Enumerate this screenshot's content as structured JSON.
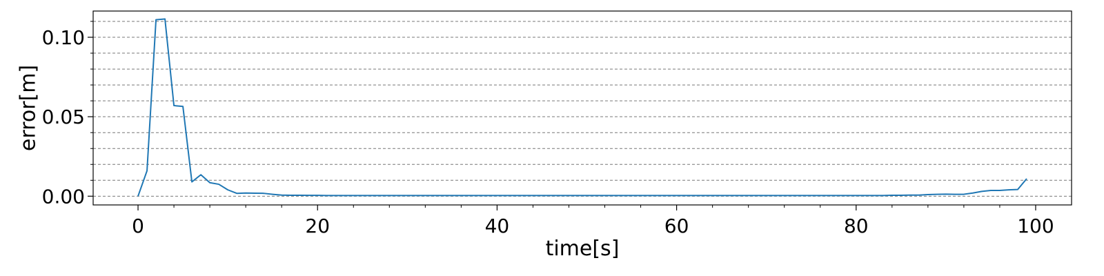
{
  "chart_data": {
    "type": "line",
    "title": "",
    "xlabel": "time[s]",
    "ylabel": "error[m]",
    "xlim": [
      -5,
      104
    ],
    "ylim": [
      -0.0055,
      0.1165
    ],
    "xticks": [
      0,
      20,
      40,
      60,
      80,
      100
    ],
    "xtick_labels": [
      "0",
      "20",
      "40",
      "60",
      "80",
      "100"
    ],
    "yticks": [
      0.0,
      0.05,
      0.1
    ],
    "ytick_labels": [
      "0.00",
      "0.05",
      "0.10"
    ],
    "grid": true,
    "grid_axis": "y",
    "grid_step": 0.01,
    "minor_xticks": [
      4,
      8,
      12,
      16,
      24,
      28,
      32,
      36,
      44,
      48,
      52,
      56,
      64,
      68,
      72,
      76,
      84,
      88,
      92,
      96
    ],
    "minor_yticks": [
      0.01,
      0.02,
      0.03,
      0.04,
      0.06,
      0.07,
      0.08,
      0.09,
      0.11
    ],
    "legend": "none",
    "series": [
      {
        "color": "#1f77b4",
        "x": [
          0,
          1,
          2,
          3,
          4,
          5,
          6,
          7,
          8,
          9,
          10,
          11,
          12,
          13,
          14,
          15,
          16,
          17,
          18,
          19,
          20,
          21,
          22,
          23,
          24,
          25,
          26,
          27,
          28,
          29,
          30,
          31,
          32,
          33,
          34,
          35,
          36,
          37,
          38,
          39,
          40,
          41,
          42,
          43,
          44,
          45,
          46,
          47,
          48,
          49,
          50,
          51,
          52,
          53,
          54,
          55,
          56,
          57,
          58,
          59,
          60,
          61,
          62,
          63,
          64,
          65,
          66,
          67,
          68,
          69,
          70,
          71,
          72,
          73,
          74,
          75,
          76,
          77,
          78,
          79,
          80,
          81,
          82,
          83,
          84,
          85,
          86,
          87,
          88,
          89,
          90,
          91,
          92,
          93,
          94,
          95,
          96,
          97,
          98,
          99
        ],
        "y": [
          0.0,
          0.016,
          0.111,
          0.1115,
          0.057,
          0.0565,
          0.009,
          0.0135,
          0.0085,
          0.0075,
          0.004,
          0.0018,
          0.002,
          0.0019,
          0.0018,
          0.0012,
          0.0007,
          0.0006,
          0.0006,
          0.0005,
          0.0005,
          0.0004,
          0.0004,
          0.0004,
          0.0004,
          0.0004,
          0.0004,
          0.0004,
          0.0004,
          0.0004,
          0.0004,
          0.0004,
          0.0004,
          0.0004,
          0.0004,
          0.0004,
          0.0004,
          0.0004,
          0.0004,
          0.0004,
          0.0004,
          0.0004,
          0.0004,
          0.0004,
          0.0004,
          0.0004,
          0.0004,
          0.0004,
          0.0004,
          0.0004,
          0.0004,
          0.0004,
          0.0004,
          0.0004,
          0.0004,
          0.0004,
          0.0004,
          0.0004,
          0.0004,
          0.0004,
          0.0004,
          0.0004,
          0.0004,
          0.0004,
          0.0004,
          0.0004,
          0.0004,
          0.0004,
          0.0004,
          0.0004,
          0.0004,
          0.0004,
          0.0004,
          0.0004,
          0.0004,
          0.0004,
          0.0004,
          0.0004,
          0.0004,
          0.0004,
          0.0004,
          0.0004,
          0.0004,
          0.0004,
          0.0006,
          0.0006,
          0.0007,
          0.0007,
          0.001,
          0.0012,
          0.0013,
          0.0012,
          0.0012,
          0.002,
          0.003,
          0.0036,
          0.0036,
          0.004,
          0.0042,
          0.011
        ]
      }
    ]
  }
}
